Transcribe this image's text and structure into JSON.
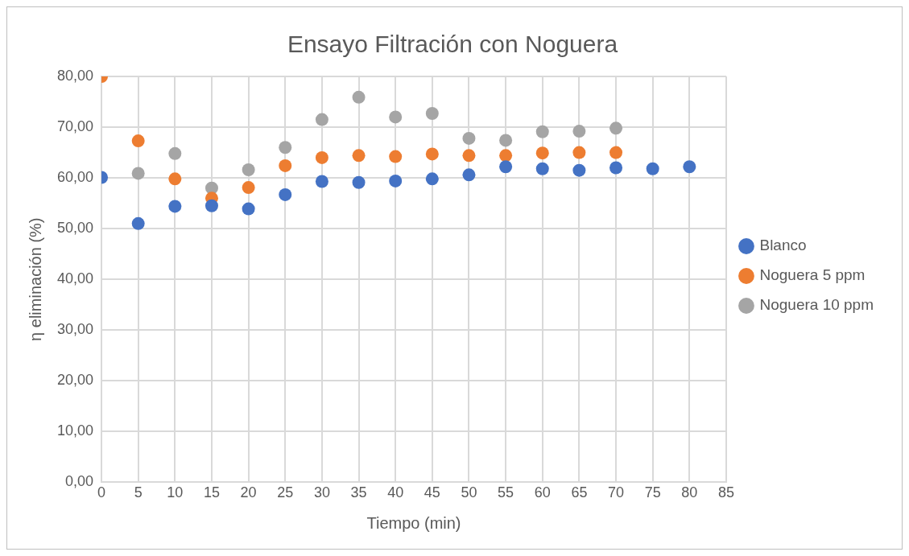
{
  "chart_data": {
    "type": "scatter",
    "title": "Ensayo Filtración con Noguera",
    "xlabel": "Tiempo (min)",
    "ylabel": "η eliminación (%)",
    "xlim": [
      0,
      85
    ],
    "xticks": [
      0,
      5,
      10,
      15,
      20,
      25,
      30,
      35,
      40,
      45,
      50,
      55,
      60,
      65,
      70,
      75,
      80,
      85
    ],
    "ylim": [
      0,
      80
    ],
    "yticks": [
      {
        "value": 0,
        "label": "0,00"
      },
      {
        "value": 10,
        "label": "10,00"
      },
      {
        "value": 20,
        "label": "20,00"
      },
      {
        "value": 30,
        "label": "30,00"
      },
      {
        "value": 40,
        "label": "40,00"
      },
      {
        "value": 50,
        "label": "50,00"
      },
      {
        "value": 60,
        "label": "60,00"
      },
      {
        "value": 70,
        "label": "70,00"
      },
      {
        "value": 80,
        "label": "80,00"
      }
    ],
    "grid": true,
    "legend": "right",
    "marker": "circle",
    "series": [
      {
        "name": "Blanco",
        "color": "#4472c4",
        "x": [
          0,
          5,
          10,
          15,
          20,
          25,
          30,
          35,
          40,
          45,
          50,
          55,
          60,
          65,
          70,
          75,
          80
        ],
        "values": [
          60.1,
          51.0,
          54.4,
          54.5,
          53.9,
          56.7,
          59.3,
          59.1,
          59.4,
          59.8,
          60.6,
          62.2,
          61.8,
          61.5,
          62.0,
          61.8,
          62.2
        ]
      },
      {
        "name": "Noguera 5 ppm",
        "color": "#ed7d31",
        "x": [
          0,
          5,
          10,
          15,
          20,
          25,
          30,
          35,
          40,
          45,
          50,
          55,
          60,
          65,
          70
        ],
        "values": [
          80.0,
          67.3,
          59.8,
          56.0,
          58.1,
          62.4,
          64.0,
          64.4,
          64.2,
          64.7,
          64.4,
          64.4,
          64.9,
          65.0,
          65.0
        ]
      },
      {
        "name": "Noguera 10 ppm",
        "color": "#a5a5a5",
        "x": [
          5,
          10,
          15,
          20,
          25,
          30,
          35,
          40,
          45,
          50,
          55,
          60,
          65,
          70
        ],
        "values": [
          60.9,
          64.8,
          58.0,
          61.6,
          66.0,
          71.5,
          75.9,
          72.0,
          72.7,
          67.8,
          67.4,
          69.1,
          69.2,
          69.8
        ]
      }
    ]
  }
}
